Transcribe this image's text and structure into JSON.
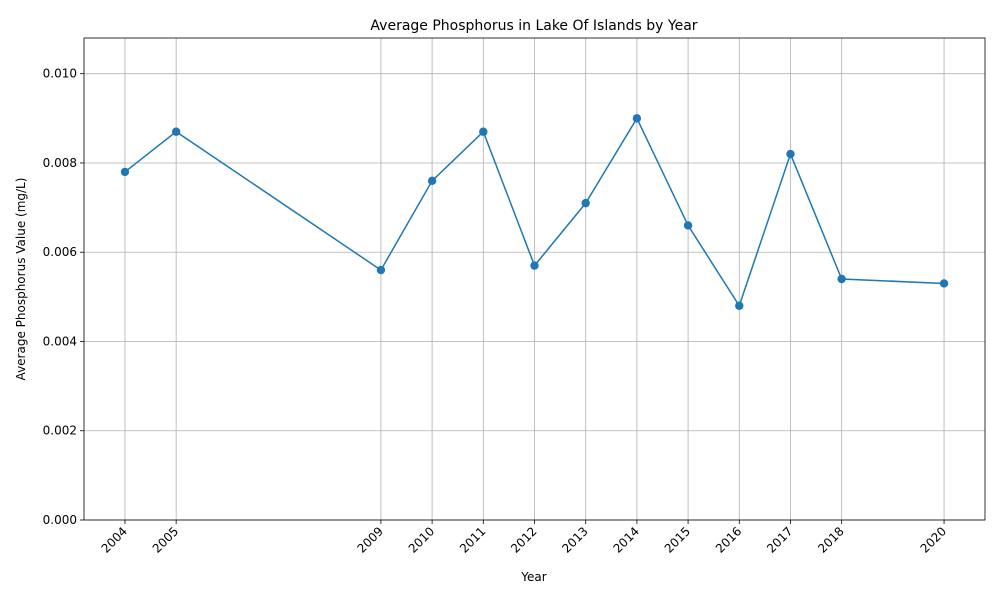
{
  "chart_data": {
    "type": "line",
    "title": "Average Phosphorus in Lake Of Islands by Year",
    "xlabel": "Year",
    "ylabel": "Average Phosphorus Value (mg/L)",
    "x": [
      2004,
      2005,
      2009,
      2010,
      2011,
      2012,
      2013,
      2014,
      2015,
      2016,
      2017,
      2018,
      2020
    ],
    "x_tick_labels": [
      "2004",
      "2005",
      "2009",
      "2010",
      "2011",
      "2012",
      "2013",
      "2014",
      "2015",
      "2016",
      "2017",
      "2018",
      "2020"
    ],
    "series": [
      {
        "values": [
          0.0078,
          0.0087,
          0.0056,
          0.0076,
          0.0087,
          0.0057,
          0.0071,
          0.009,
          0.0066,
          0.0048,
          0.0082,
          0.0054,
          0.0053
        ]
      }
    ],
    "xlim": [
      2003.2,
      2020.8
    ],
    "ylim": [
      0,
      0.0108
    ],
    "y_ticks": [
      0.0,
      0.002,
      0.004,
      0.006,
      0.008,
      0.01
    ],
    "y_tick_labels": [
      "0.000",
      "0.002",
      "0.004",
      "0.006",
      "0.008",
      "0.010"
    ],
    "grid": true,
    "x_tick_rotation": "45deg",
    "line_color": "#1f77b4",
    "marker": "circle"
  }
}
